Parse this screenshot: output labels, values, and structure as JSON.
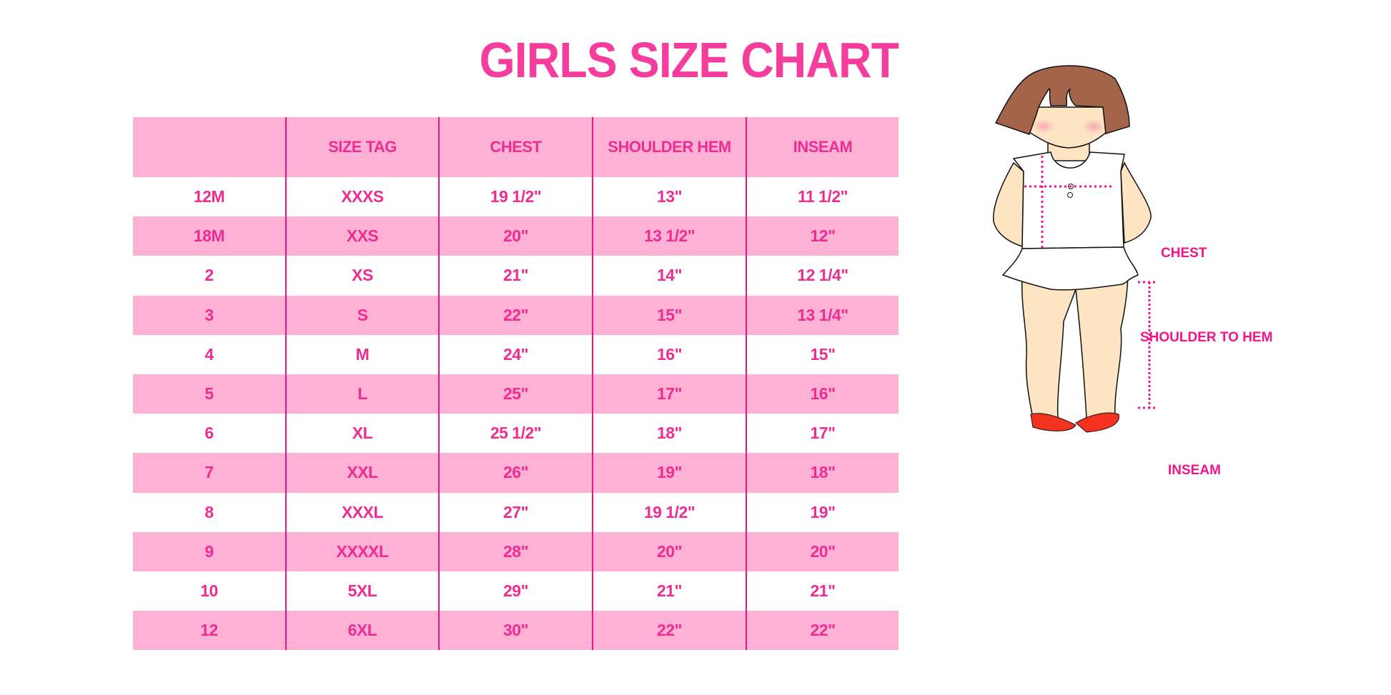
{
  "title": "GIRLS SIZE CHART",
  "table": {
    "headers": [
      "",
      "SIZE TAG",
      "CHEST",
      "SHOULDER HEM",
      "INSEAM"
    ],
    "rows": [
      [
        "12M",
        "XXXS",
        "19 1/2\"",
        "13\"",
        "11 1/2\""
      ],
      [
        "18M",
        "XXS",
        "20\"",
        "13 1/2\"",
        "12\""
      ],
      [
        "2",
        "XS",
        "21\"",
        "14\"",
        "12 1/4\""
      ],
      [
        "3",
        "S",
        "22\"",
        "15\"",
        "13 1/4\""
      ],
      [
        "4",
        "M",
        "24\"",
        "16\"",
        "15\""
      ],
      [
        "5",
        "L",
        "25\"",
        "17\"",
        "16\""
      ],
      [
        "6",
        "XL",
        "25 1/2\"",
        "18\"",
        "17\""
      ],
      [
        "7",
        "XXL",
        "26\"",
        "19\"",
        "18\""
      ],
      [
        "8",
        "XXXL",
        "27\"",
        "19 1/2\"",
        "19\""
      ],
      [
        "9",
        "XXXXL",
        "28\"",
        "20\"",
        "20\""
      ],
      [
        "10",
        "5XL",
        "29\"",
        "21\"",
        "21\""
      ],
      [
        "12",
        "6XL",
        "30\"",
        "22\"",
        "22\""
      ]
    ]
  },
  "figure": {
    "labels": {
      "chest": "CHEST",
      "shoulder_to_hem": "SHOULDER TO HEM",
      "inseam": "INSEAM"
    }
  },
  "colors": {
    "accent": "#f43d9d",
    "row_band": "#fdb1d5",
    "divider": "#e3168a"
  }
}
